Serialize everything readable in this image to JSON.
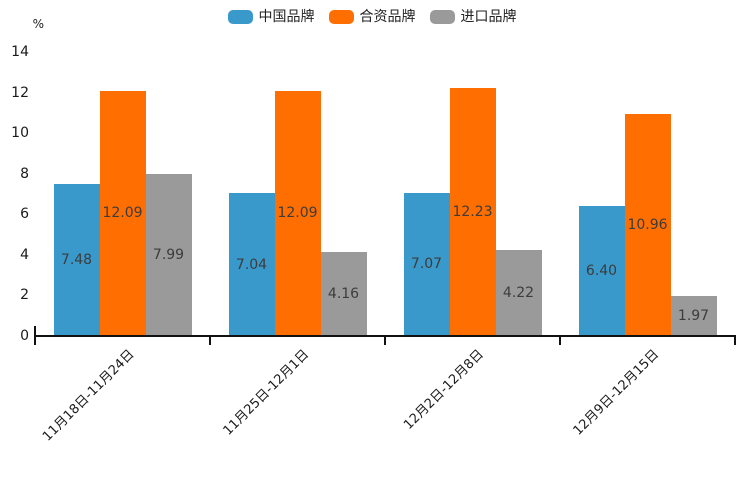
{
  "chart_data": {
    "type": "bar",
    "title": "",
    "xlabel": "",
    "ylabel": "%",
    "ylim": [
      0,
      14
    ],
    "yticks": [
      0,
      2,
      4,
      6,
      8,
      10,
      12,
      14
    ],
    "grid": false,
    "legend_position": "top",
    "categories": [
      "11月18日-11月24日",
      "11月25日-12月1日",
      "12月2日-12月8日",
      "12月9日-12月15日"
    ],
    "series": [
      {
        "name": "中国品牌",
        "color": "#3a99cb",
        "values": [
          7.48,
          7.04,
          7.07,
          6.4
        ],
        "display": [
          "7.48",
          "7.04",
          "7.07",
          "6.40"
        ]
      },
      {
        "name": "合资品牌",
        "color": "#ff6e00",
        "values": [
          12.09,
          12.09,
          12.23,
          10.96
        ],
        "display": [
          "12.09",
          "12.09",
          "12.23",
          "10.96"
        ]
      },
      {
        "name": "进口品牌",
        "color": "#9a9a9a",
        "values": [
          7.99,
          4.16,
          4.22,
          1.97
        ],
        "display": [
          "7.99",
          "4.16",
          "4.22",
          "1.97"
        ]
      }
    ],
    "value_label_color": "#3c3c3c",
    "axis_color": "#111111"
  }
}
